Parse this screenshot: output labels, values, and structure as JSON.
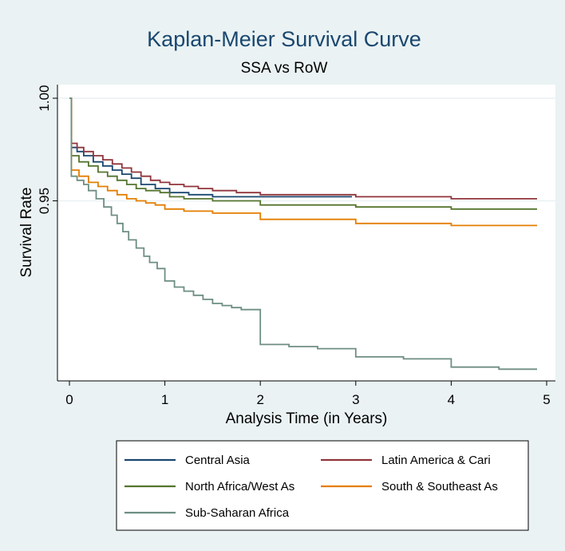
{
  "chart_data": {
    "type": "line",
    "step": true,
    "title": "Kaplan-Meier Survival Curve",
    "subtitle": "SSA vs RoW",
    "xlabel": "Analysis Time (in Years)",
    "ylabel": "Survival Rate",
    "xlim": [
      -0.05,
      5
    ],
    "ylim": [
      0.865,
      1.0
    ],
    "xticks": [
      0,
      1,
      2,
      3,
      4,
      5
    ],
    "xtick_labels": [
      "0",
      "1",
      "2",
      "3",
      "4",
      "5"
    ],
    "yticks": [
      1.0,
      0.95
    ],
    "ytick_labels": [
      "1.00",
      "0.95"
    ],
    "grid": "horizontal at y ticks",
    "legend_placement": "bottom",
    "series": [
      {
        "name": "Central Asia",
        "color": "#1a476f",
        "x": [
          0,
          0.02,
          0.08,
          0.15,
          0.25,
          0.35,
          0.45,
          0.55,
          0.65,
          0.75,
          0.9,
          1.05,
          1.25,
          1.5,
          2.0,
          2.5,
          2.96
        ],
        "y": [
          1.0,
          0.976,
          0.974,
          0.972,
          0.969,
          0.967,
          0.965,
          0.963,
          0.961,
          0.958,
          0.956,
          0.954,
          0.953,
          0.952,
          0.952,
          0.952,
          0.952
        ]
      },
      {
        "name": "Latin America & Cari",
        "color": "#90353b",
        "x": [
          0,
          0.02,
          0.08,
          0.15,
          0.25,
          0.35,
          0.45,
          0.55,
          0.65,
          0.75,
          0.85,
          0.95,
          1.05,
          1.2,
          1.35,
          1.5,
          1.75,
          2.0,
          2.5,
          3.0,
          3.5,
          4.0,
          4.5,
          4.9
        ],
        "y": [
          1.0,
          0.978,
          0.976,
          0.974,
          0.972,
          0.97,
          0.968,
          0.966,
          0.964,
          0.962,
          0.96,
          0.959,
          0.958,
          0.957,
          0.956,
          0.955,
          0.954,
          0.953,
          0.953,
          0.952,
          0.952,
          0.951,
          0.951,
          0.951
        ]
      },
      {
        "name": "North Africa/West As",
        "color": "#55752f",
        "x": [
          0,
          0.02,
          0.1,
          0.2,
          0.3,
          0.4,
          0.5,
          0.6,
          0.7,
          0.8,
          0.95,
          1.05,
          1.2,
          1.5,
          2.0,
          2.5,
          3.0,
          3.5,
          4.0,
          4.5,
          4.9
        ],
        "y": [
          1.0,
          0.972,
          0.969,
          0.967,
          0.964,
          0.962,
          0.96,
          0.958,
          0.956,
          0.955,
          0.954,
          0.952,
          0.951,
          0.95,
          0.948,
          0.948,
          0.947,
          0.947,
          0.946,
          0.946,
          0.946
        ]
      },
      {
        "name": "South & Southeast As",
        "color": "#e37e00",
        "x": [
          0,
          0.02,
          0.1,
          0.2,
          0.3,
          0.4,
          0.5,
          0.6,
          0.7,
          0.8,
          0.9,
          1.0,
          1.2,
          1.5,
          2.0,
          2.5,
          3.0,
          3.5,
          4.0,
          4.5,
          4.9
        ],
        "y": [
          1.0,
          0.965,
          0.962,
          0.959,
          0.957,
          0.955,
          0.953,
          0.951,
          0.95,
          0.949,
          0.948,
          0.946,
          0.945,
          0.944,
          0.941,
          0.941,
          0.939,
          0.939,
          0.938,
          0.938,
          0.938
        ]
      },
      {
        "name": "Sub-Saharan Africa",
        "color": "#6e8e84",
        "x": [
          0,
          0.02,
          0.08,
          0.15,
          0.2,
          0.28,
          0.36,
          0.44,
          0.5,
          0.56,
          0.62,
          0.7,
          0.78,
          0.84,
          0.92,
          1.0,
          1.1,
          1.2,
          1.3,
          1.4,
          1.5,
          1.6,
          1.7,
          1.8,
          2.0,
          2.3,
          2.6,
          3.0,
          3.5,
          4.0,
          4.5,
          4.9
        ],
        "y": [
          1.0,
          0.962,
          0.96,
          0.958,
          0.955,
          0.951,
          0.947,
          0.943,
          0.939,
          0.935,
          0.931,
          0.927,
          0.923,
          0.92,
          0.917,
          0.911,
          0.908,
          0.906,
          0.904,
          0.902,
          0.9,
          0.899,
          0.898,
          0.897,
          0.88,
          0.879,
          0.878,
          0.874,
          0.873,
          0.869,
          0.868,
          0.868
        ]
      }
    ]
  }
}
